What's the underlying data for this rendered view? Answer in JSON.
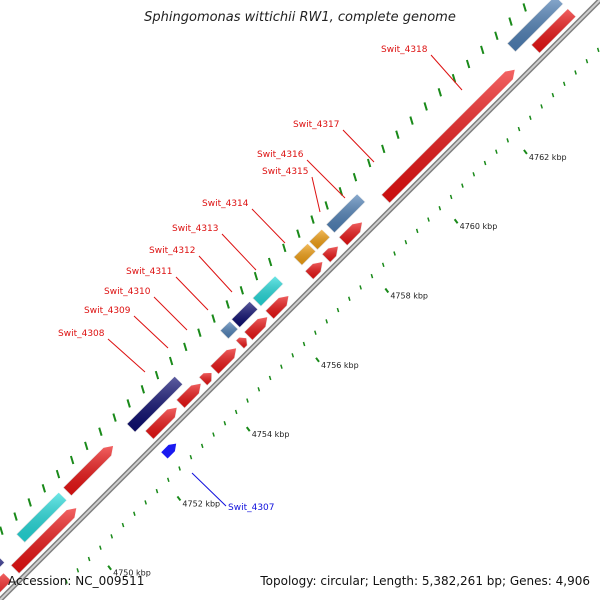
{
  "title": "Sphingomonas wittichii RW1, complete genome",
  "footer": {
    "accession": "Accession: NC_009511",
    "summary": "Topology: circular; Length: 5,382,261 bp; Genes: 4,906"
  },
  "colors": {
    "backbone": "#999999",
    "gene_red": "#ee1111",
    "gene_blue": "#1a1af0",
    "navy": "#0a0a70",
    "steelblue": "#4f81b8",
    "cyan": "#22dddd",
    "orange": "#f5a00f",
    "label_red": "#dd1111",
    "label_blue": "#1010dd",
    "tick_green": "#1a8a1a"
  },
  "scale_ticks": [
    {
      "label": "4750 kbp",
      "kbp": 4750
    },
    {
      "label": "4752 kbp",
      "kbp": 4752
    },
    {
      "label": "4754 kbp",
      "kbp": 4754
    },
    {
      "label": "4756 kbp",
      "kbp": 4756
    },
    {
      "label": "4758 kbp",
      "kbp": 4758
    },
    {
      "label": "4760 kbp",
      "kbp": 4760
    },
    {
      "label": "4762 kbp",
      "kbp": 4762
    }
  ],
  "gene_labels": [
    {
      "text": "Swit_4308",
      "color": "label_red"
    },
    {
      "text": "Swit_4309",
      "color": "label_red"
    },
    {
      "text": "Swit_4310",
      "color": "label_red"
    },
    {
      "text": "Swit_4311",
      "color": "label_red"
    },
    {
      "text": "Swit_4312",
      "color": "label_red"
    },
    {
      "text": "Swit_4313",
      "color": "label_red"
    },
    {
      "text": "Swit_4314",
      "color": "label_red"
    },
    {
      "text": "Swit_4315",
      "color": "label_red"
    },
    {
      "text": "Swit_4316",
      "color": "label_red"
    },
    {
      "text": "Swit_4317",
      "color": "label_red"
    },
    {
      "text": "Swit_4318",
      "color": "label_red"
    },
    {
      "text": "Swit_4307",
      "color": "label_blue"
    }
  ]
}
